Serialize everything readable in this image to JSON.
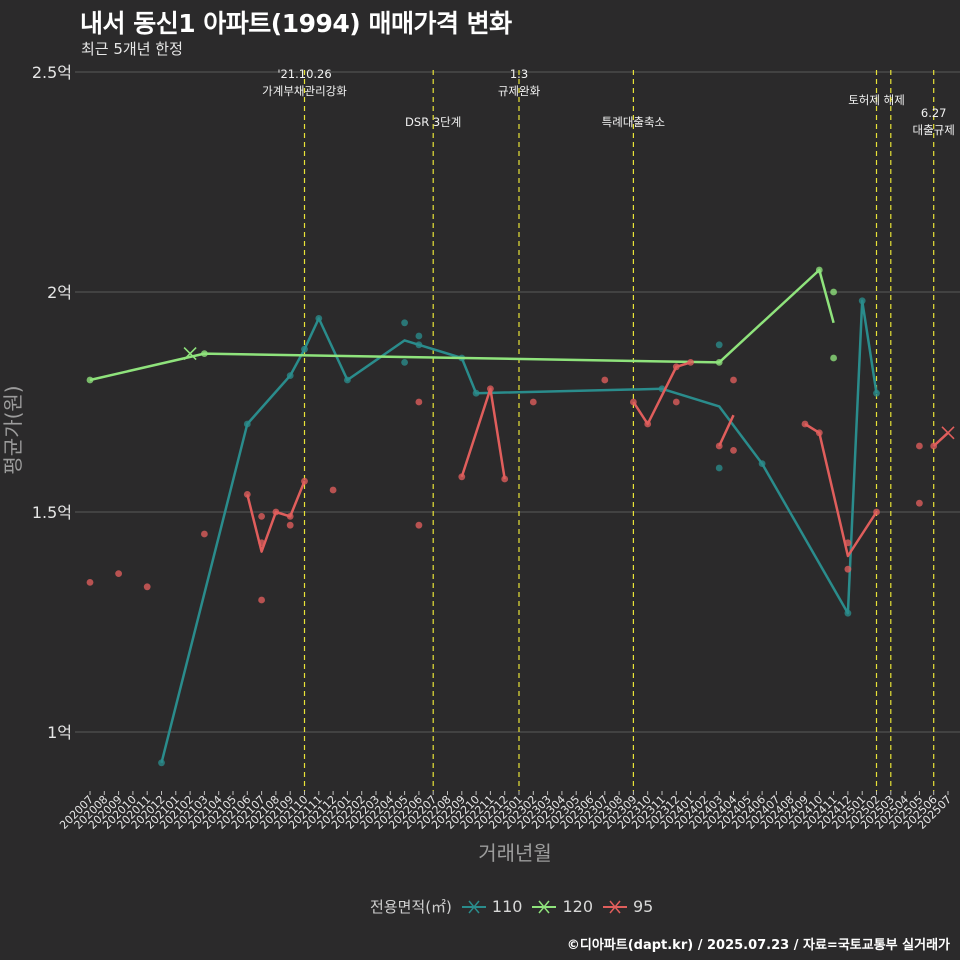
{
  "title": "내서 동신1 아파트(1994) 매매가격 변화",
  "subtitle": "최근 5개년 한정",
  "caption": "©디아파트(dapt.kr) / 2025.07.23 / 자료=국토교통부 실거래가",
  "colors": {
    "110": "#2a8c8c",
    "120": "#8fe37c",
    "95": "#e05e5c",
    "event_line": "#e8e337",
    "grid": "#5a5a5a"
  },
  "chart_data": {
    "type": "line",
    "xlabel": "거래년월",
    "ylabel": "평균가(원)",
    "ylim": [
      0.87,
      2.5
    ],
    "y_ticks": [
      {
        "value": 1.0,
        "label": "1억"
      },
      {
        "value": 1.5,
        "label": "1.5억"
      },
      {
        "value": 2.0,
        "label": "2억"
      },
      {
        "value": 2.5,
        "label": "2.5억"
      }
    ],
    "categories": [
      "202007",
      "202008",
      "202009",
      "202010",
      "202011",
      "202012",
      "202101",
      "202102",
      "202103",
      "202104",
      "202105",
      "202106",
      "202107",
      "202108",
      "202109",
      "202110",
      "202111",
      "202112",
      "202201",
      "202202",
      "202203",
      "202204",
      "202205",
      "202206",
      "202207",
      "202208",
      "202209",
      "202210",
      "202211",
      "202212",
      "202301",
      "202302",
      "202303",
      "202304",
      "202305",
      "202306",
      "202307",
      "202308",
      "202309",
      "202310",
      "202311",
      "202312",
      "202401",
      "202402",
      "202403",
      "202404",
      "202405",
      "202406",
      "202407",
      "202408",
      "202409",
      "202410",
      "202411",
      "202412",
      "202501",
      "202502",
      "202503",
      "202504",
      "202505",
      "202506",
      "202507"
    ],
    "events": [
      {
        "x": "202110",
        "label": "'21.10.26\n가계부채관리강화",
        "level": 0
      },
      {
        "x": "202207",
        "label": "DSR 3단계",
        "level": 1
      },
      {
        "x": "202301",
        "label": "1.3\n규제완화",
        "level": 0
      },
      {
        "x": "202309",
        "label": "특례대출축소",
        "level": 1
      },
      {
        "x": "202502",
        "label": "토허제 해제",
        "level": 2
      },
      {
        "x": "202503",
        "label": "",
        "level": 2
      },
      {
        "x": "202506",
        "label": "6.27\n대출규제",
        "level": 3
      }
    ],
    "legend_title": "전용면적(㎡)",
    "series": [
      {
        "name": "110",
        "line": [
          [
            "202012",
            0.93
          ],
          [
            "202106",
            1.7
          ],
          [
            "202109",
            1.81
          ],
          [
            "202110",
            1.87
          ],
          [
            "202111",
            1.94
          ],
          [
            "202201",
            1.8
          ],
          [
            "202205",
            1.89
          ],
          [
            "202206",
            1.88
          ],
          [
            "202209",
            1.85
          ],
          [
            "202210",
            1.77
          ],
          [
            "202311",
            1.78
          ],
          [
            "202403",
            1.74
          ],
          [
            "202406",
            1.61
          ],
          [
            "202412",
            1.27
          ],
          [
            "202501",
            1.98
          ],
          [
            "202502",
            1.77
          ]
        ],
        "points": [
          [
            "202012",
            0.93
          ],
          [
            "202106",
            1.7
          ],
          [
            "202109",
            1.81
          ],
          [
            "202110",
            1.87
          ],
          [
            "202111",
            1.94
          ],
          [
            "202201",
            1.8
          ],
          [
            "202205",
            1.93
          ],
          [
            "202205",
            1.84
          ],
          [
            "202206",
            1.9
          ],
          [
            "202206",
            1.88
          ],
          [
            "202209",
            1.85
          ],
          [
            "202210",
            1.77
          ],
          [
            "202311",
            1.78
          ],
          [
            "202403",
            1.88
          ],
          [
            "202403",
            1.6
          ],
          [
            "202406",
            1.61
          ],
          [
            "202412",
            1.27
          ],
          [
            "202501",
            1.98
          ],
          [
            "202502",
            1.77
          ]
        ],
        "cross": []
      },
      {
        "name": "120",
        "line": [
          [
            "202007",
            1.8
          ],
          [
            "202103",
            1.86
          ],
          [
            "202403",
            1.84
          ],
          [
            "202410",
            2.05
          ],
          [
            "202411",
            1.93
          ]
        ],
        "points": [
          [
            "202007",
            1.8
          ],
          [
            "202103",
            1.86
          ],
          [
            "202403",
            1.84
          ],
          [
            "202410",
            2.05
          ],
          [
            "202411",
            2.0
          ],
          [
            "202411",
            1.85
          ]
        ],
        "cross": [
          [
            "202102",
            1.86
          ]
        ]
      },
      {
        "name": "95",
        "line_segments": [
          [
            [
              "202106",
              1.54
            ],
            [
              "202107",
              1.41
            ],
            [
              "202108",
              1.5
            ],
            [
              "202109",
              1.49
            ],
            [
              "202110",
              1.57
            ]
          ],
          [
            [
              "202209",
              1.58
            ],
            [
              "202211",
              1.78
            ],
            [
              "202212",
              1.575
            ]
          ],
          [
            [
              "202309",
              1.75
            ],
            [
              "202310",
              1.7
            ],
            [
              "202312",
              1.83
            ],
            [
              "202401",
              1.84
            ]
          ],
          [
            [
              "202403",
              1.65
            ],
            [
              "202404",
              1.72
            ]
          ],
          [
            [
              "202409",
              1.7
            ],
            [
              "202410",
              1.68
            ],
            [
              "202412",
              1.4
            ],
            [
              "202502",
              1.5
            ]
          ],
          [
            [
              "202506",
              1.65
            ],
            [
              "202507",
              1.68
            ]
          ]
        ],
        "points": [
          [
            "202007",
            1.34
          ],
          [
            "202009",
            1.36
          ],
          [
            "202011",
            1.33
          ],
          [
            "202103",
            1.45
          ],
          [
            "202106",
            1.54
          ],
          [
            "202107",
            1.49
          ],
          [
            "202107",
            1.43
          ],
          [
            "202107",
            1.3
          ],
          [
            "202108",
            1.5
          ],
          [
            "202109",
            1.49
          ],
          [
            "202109",
            1.47
          ],
          [
            "202110",
            1.57
          ],
          [
            "202112",
            1.55
          ],
          [
            "202206",
            1.75
          ],
          [
            "202206",
            1.47
          ],
          [
            "202209",
            1.58
          ],
          [
            "202211",
            1.78
          ],
          [
            "202212",
            1.575
          ],
          [
            "202302",
            1.75
          ],
          [
            "202307",
            1.8
          ],
          [
            "202309",
            1.75
          ],
          [
            "202310",
            1.7
          ],
          [
            "202312",
            1.75
          ],
          [
            "202312",
            1.83
          ],
          [
            "202401",
            1.84
          ],
          [
            "202403",
            1.65
          ],
          [
            "202404",
            1.8
          ],
          [
            "202404",
            1.64
          ],
          [
            "202409",
            1.7
          ],
          [
            "202410",
            1.68
          ],
          [
            "202412",
            1.43
          ],
          [
            "202412",
            1.37
          ],
          [
            "202502",
            1.5
          ],
          [
            "202505",
            1.65
          ],
          [
            "202505",
            1.52
          ],
          [
            "202506",
            1.65
          ]
        ],
        "cross": [
          [
            "202507",
            1.68
          ]
        ]
      }
    ]
  }
}
